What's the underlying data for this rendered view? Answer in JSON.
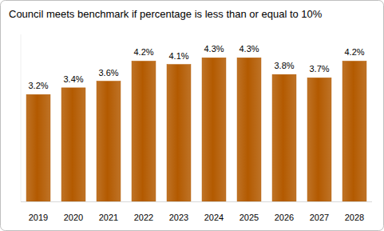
{
  "chart_data": {
    "type": "bar",
    "title": "Council meets benchmark if percentage is less than or equal to 10%",
    "categories": [
      "2019",
      "2020",
      "2021",
      "2022",
      "2023",
      "2024",
      "2025",
      "2026",
      "2027",
      "2028"
    ],
    "values": [
      3.2,
      3.4,
      3.6,
      4.2,
      4.1,
      4.3,
      4.3,
      3.8,
      3.7,
      4.2
    ],
    "value_labels": [
      "3.2%",
      "3.4%",
      "3.6%",
      "4.2%",
      "4.1%",
      "4.3%",
      "4.3%",
      "3.8%",
      "3.7%",
      "4.2%"
    ],
    "color": "#b35a00",
    "ylim": [
      0,
      5
    ],
    "grid": false,
    "data_labels": true,
    "tick_labels": "x"
  }
}
